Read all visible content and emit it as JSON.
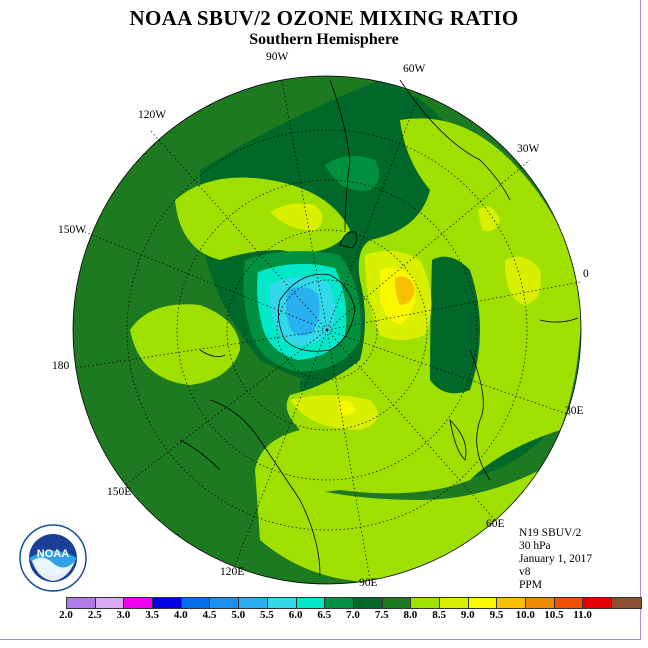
{
  "title": "NOAA SBUV/2 OZONE MIXING RATIO",
  "subtitle": "Southern Hemisphere",
  "longitude_labels": [
    "90W",
    "60W",
    "30W",
    "0",
    "30E",
    "60E",
    "90E",
    "120E",
    "150E",
    "180",
    "150W",
    "120W"
  ],
  "info": {
    "satellite": "N19 SBUV/2",
    "level": "30 hPa",
    "date": "January 1, 2017",
    "version": "v8",
    "units": "PPM"
  },
  "logo_text": "NOAA",
  "colorbar": {
    "ticks": [
      "2.0",
      "2.5",
      "3.0",
      "3.5",
      "4.0",
      "4.5",
      "5.0",
      "5.5",
      "6.0",
      "6.5",
      "7.0",
      "7.5",
      "8.0",
      "8.5",
      "9.0",
      "9.5",
      "10.0",
      "10.5",
      "11.0"
    ],
    "colors": [
      "#b07ae8",
      "#d8a8f0",
      "#f000f0",
      "#0000e0",
      "#0070e8",
      "#1a90f0",
      "#28b0f0",
      "#30d8e8",
      "#00e8c8",
      "#009040",
      "#006828",
      "#1e7a20",
      "#a0e000",
      "#d8f000",
      "#f8f800",
      "#f8c000",
      "#f08800",
      "#f05000",
      "#e80000",
      "#8c5030"
    ]
  }
}
